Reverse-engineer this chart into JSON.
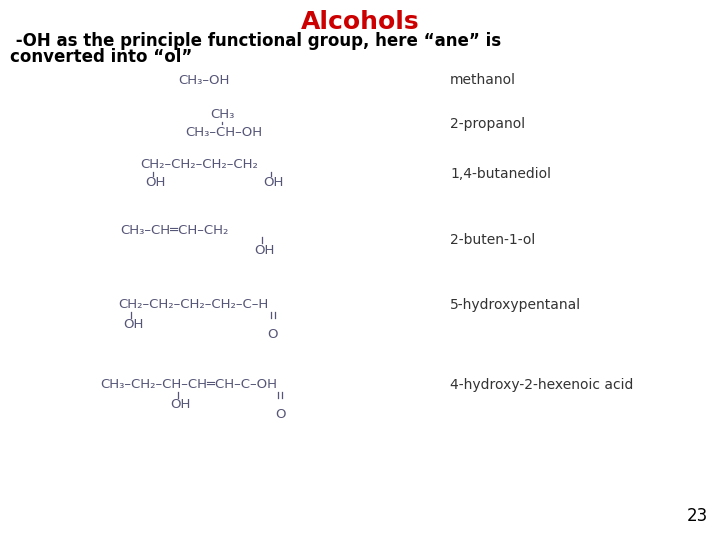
{
  "title": "Alcohols",
  "title_color": "#cc0000",
  "title_fontsize": 18,
  "subtitle_line1": " -OH as the principle functional group, here “ane” is",
  "subtitle_line2": "converted into “ol”",
  "subtitle_fontsize": 12,
  "subtitle_color": "#000000",
  "page_number": "23",
  "background_color": "#ffffff",
  "text_color": "#000000",
  "formula_color": "#555577",
  "name_color": "#333333",
  "formula_fontsize": 9.5,
  "name_fontsize": 10
}
